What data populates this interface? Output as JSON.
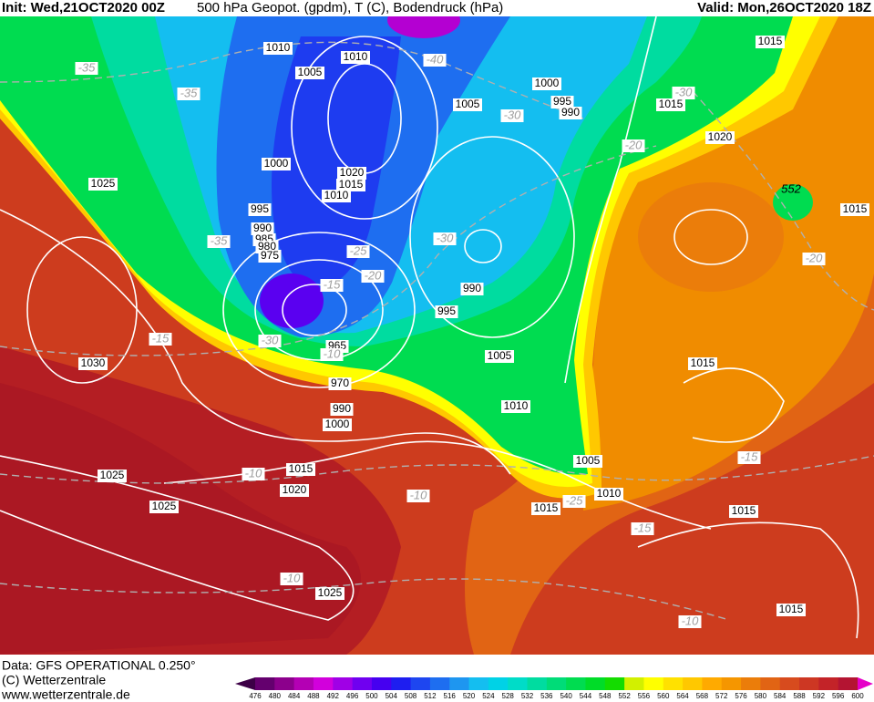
{
  "header": {
    "init": "Init: Wed,21OCT2020 00Z",
    "title": "500 hPa Geopot. (gpdm), T (C), Bodendruck (hPa)",
    "valid": "Valid: Mon,26OCT2020 18Z"
  },
  "map": {
    "isobars": [
      "1010",
      "1010",
      "1005",
      "1000",
      "995",
      "990",
      "1005",
      "1015",
      "1015",
      "1020",
      "1025",
      "1000",
      "1020",
      "1015",
      "1010",
      "995",
      "990",
      "985",
      "980",
      "975",
      "990",
      "995",
      "965",
      "970",
      "990",
      "1000",
      "1005",
      "1010",
      "1030",
      "1025",
      "1025",
      "1015",
      "1020",
      "1005",
      "1010",
      "1015",
      "1015",
      "1015",
      "1015",
      "1015",
      "1025"
    ],
    "isotherms": [
      "-35",
      "-35",
      "-40",
      "-30",
      "-20",
      "-30",
      "-35",
      "-25",
      "-20",
      "-30",
      "-15",
      "-10",
      "-30",
      "-15",
      "-20",
      "-15",
      "-10",
      "-10",
      "-25",
      "-15",
      "-10",
      "-10"
    ],
    "height_labels": [
      "552"
    ]
  },
  "footer": {
    "data": "Data: GFS OPERATIONAL 0.250°",
    "copyright": "(C) Wetterzentrale",
    "url": "www.wetterzentrale.de"
  },
  "colorbar": {
    "labels": [
      476,
      480,
      484,
      488,
      492,
      496,
      500,
      504,
      508,
      512,
      516,
      520,
      524,
      528,
      532,
      536,
      540,
      544,
      548,
      552,
      556,
      560,
      564,
      568,
      572,
      576,
      580,
      584,
      588,
      592,
      596,
      600
    ],
    "colors": [
      "#3c0046",
      "#64006e",
      "#8c008c",
      "#b400b4",
      "#d200dc",
      "#a000e6",
      "#7000f0",
      "#4600f0",
      "#1e1ef0",
      "#1e46f0",
      "#1e6ef0",
      "#1e96f0",
      "#14bef0",
      "#00d2e6",
      "#00dcc8",
      "#00dca0",
      "#00dc78",
      "#00dc50",
      "#00dc28",
      "#14dc00",
      "#d2f000",
      "#ffff00",
      "#ffe100",
      "#ffc800",
      "#ffaa00",
      "#f59600",
      "#eb7d0a",
      "#e16414",
      "#d74b1e",
      "#cd3723",
      "#c32328",
      "#b41432",
      "#e600c8"
    ]
  }
}
